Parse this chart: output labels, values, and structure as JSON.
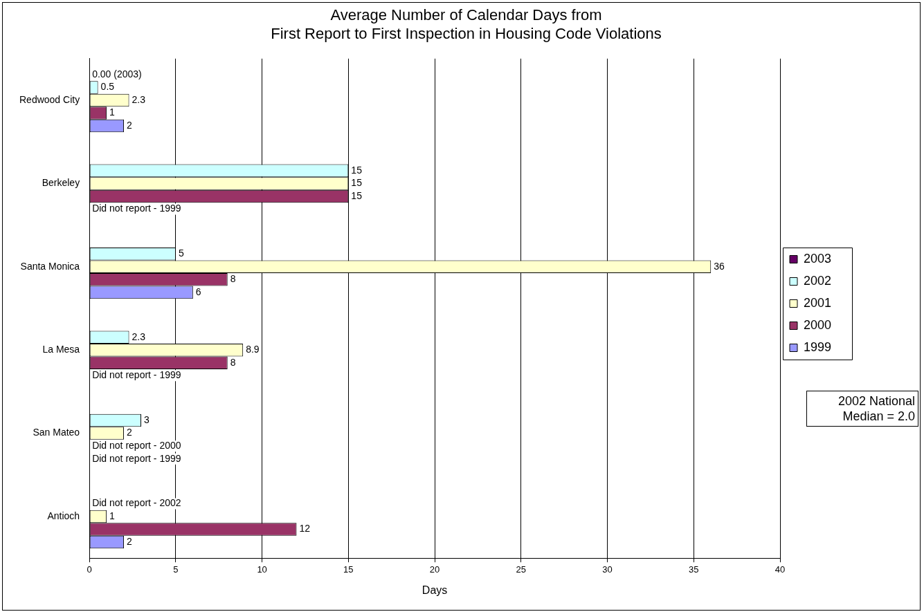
{
  "chart_data": {
    "type": "bar",
    "orientation": "horizontal",
    "title": "Average Number of Calendar Days from\nFirst Report to First Inspection in Housing Code Violations",
    "xlabel": "Days",
    "categories": [
      "Redwood City",
      "Berkeley",
      "Santa Monica",
      "La Mesa",
      "San Mateo",
      "Antioch"
    ],
    "series": [
      {
        "name": "2003",
        "color": "#660066",
        "values": [
          0,
          null,
          null,
          null,
          null,
          null
        ]
      },
      {
        "name": "2002",
        "color": "#ccffff",
        "values": [
          0.5,
          15,
          5,
          2.3,
          3,
          null
        ],
        "value_labels": [
          "0.5",
          "15",
          "5",
          "2.3",
          "3",
          "Did not report - 2002"
        ]
      },
      {
        "name": "2001",
        "color": "#ffffcc",
        "values": [
          2.3,
          15,
          36,
          8.9,
          2,
          1
        ],
        "value_labels": [
          "2.3",
          "15",
          "36",
          "8.9",
          "2",
          "1"
        ]
      },
      {
        "name": "2000",
        "color": "#993366",
        "values": [
          1,
          15,
          8,
          8,
          null,
          12
        ],
        "value_labels": [
          "1",
          "15",
          "8",
          "8",
          "Did not report - 2000",
          "12"
        ]
      },
      {
        "name": "1999",
        "color": "#9999ff",
        "values": [
          2,
          null,
          6,
          null,
          null,
          2
        ],
        "value_labels": [
          "2",
          "Did not report - 1999",
          "6",
          "Did not report - 1999",
          "Did not report - 1999",
          "2"
        ]
      }
    ],
    "xlim": [
      0,
      40
    ],
    "xticks": [
      0,
      5,
      10,
      15,
      20,
      25,
      30,
      35,
      40
    ],
    "grid": "x",
    "legend": "right",
    "annotations": [
      "2002 National Median = 2.0",
      {
        "text": "0.00 (2003)",
        "x": 0,
        "y": "Redwood City"
      }
    ]
  }
}
